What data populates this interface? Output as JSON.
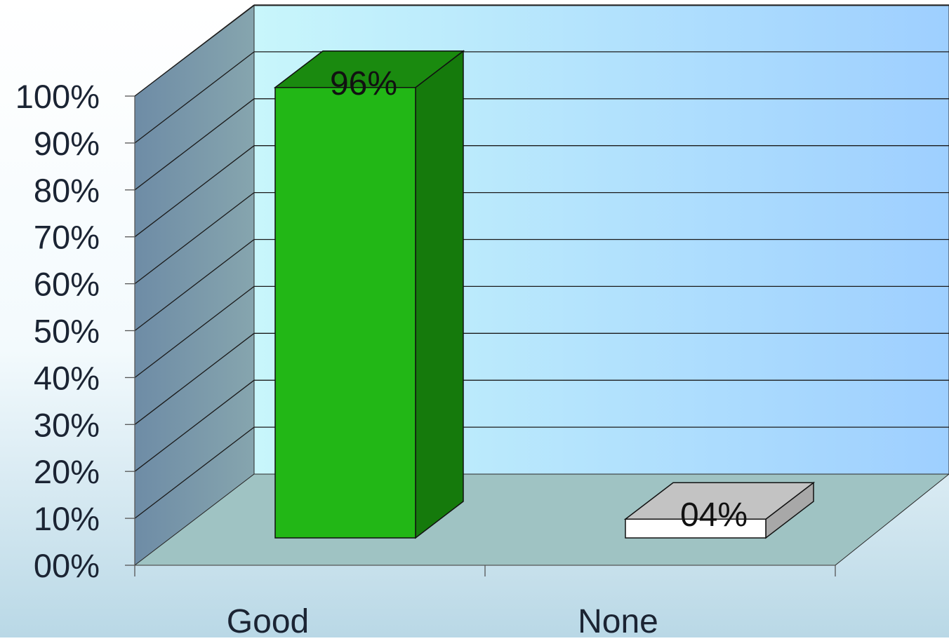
{
  "chart_data": {
    "type": "bar",
    "categories": [
      "Good",
      "None"
    ],
    "values": [
      96,
      4
    ],
    "data_labels": [
      "96%",
      "04%"
    ],
    "y_tick_labels": [
      "00%",
      "10%",
      "20%",
      "30%",
      "40%",
      "50%",
      "60%",
      "70%",
      "80%",
      "90%",
      "100%"
    ],
    "ylim": [
      0,
      100
    ],
    "grid": true,
    "legend": "none",
    "colors": {
      "bar_front": [
        "#22b716",
        "#ffffff"
      ],
      "bar_top": [
        "#1a8a0f",
        "#c3c3c3"
      ],
      "bar_side": [
        "#157a0c",
        "#a8a8a8"
      ],
      "back_wall_start": "#c8f6fb",
      "back_wall_end": "#9ecfff",
      "side_wall": "#7a9aa8",
      "floor": "#9fc3c3",
      "gridline": "#1a1a1a",
      "text": "#1b2433"
    }
  }
}
